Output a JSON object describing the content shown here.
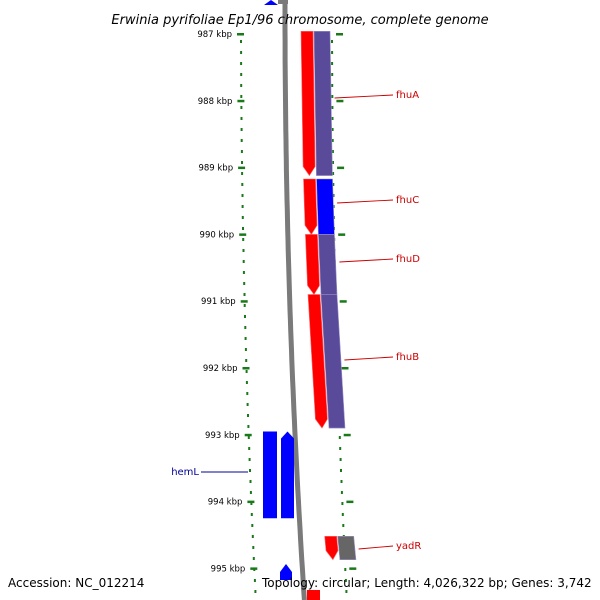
{
  "title": "Erwinia pyrifoliae Ep1/96 chromosome, complete genome",
  "accession": "Accession: NC_012214",
  "topology": "Topology: circular; Length: 4,026,322 bp; Genes: 3,742",
  "colors": {
    "background": "#ffffff",
    "backbone": "#7a7a7a",
    "ticks": "#1a7a1a",
    "forward_gene": "#ff0000",
    "reverse_gene": "#0000ff",
    "cds_track": "#5a4a9a",
    "pseudo_track": "#666666",
    "label_right": "#cc0000",
    "label_left": "#000099",
    "text": "#000000"
  },
  "scale": {
    "unit": "kbp",
    "major_ticks": [
      "987 kbp",
      "988 kbp",
      "989 kbp",
      "990 kbp",
      "991 kbp",
      "992 kbp",
      "993 kbp",
      "994 kbp",
      "995 kbp"
    ]
  },
  "features": [
    {
      "id": "fhuA",
      "label": "fhuA",
      "strand": "+",
      "track": "gene",
      "start_kbp": 986.96,
      "end_kbp": 989.12,
      "cds": "purple"
    },
    {
      "id": "fhuC",
      "label": "fhuC",
      "strand": "+",
      "track": "gene",
      "start_kbp": 989.17,
      "end_kbp": 990.0,
      "cds": "blue"
    },
    {
      "id": "fhuD",
      "label": "fhuD",
      "strand": "+",
      "track": "gene",
      "start_kbp": 990.0,
      "end_kbp": 990.9,
      "cds": "purple"
    },
    {
      "id": "fhuB",
      "label": "fhuB",
      "strand": "+",
      "track": "gene",
      "start_kbp": 990.9,
      "end_kbp": 992.9,
      "cds": "purple"
    },
    {
      "id": "yadR",
      "label": "yadR",
      "strand": "+",
      "track": "gene",
      "start_kbp": 994.52,
      "end_kbp": 994.87,
      "cds": "gray"
    },
    {
      "id": "hemL",
      "label": "hemL",
      "strand": "-",
      "track": "reverse",
      "start_kbp": 992.95,
      "end_kbp": 994.25,
      "cds": "blue"
    },
    {
      "id": "hemL-partner",
      "label": "",
      "strand": "-",
      "track": "reverse",
      "start_kbp": 992.95,
      "end_kbp": 994.25,
      "cds": "blue"
    }
  ]
}
